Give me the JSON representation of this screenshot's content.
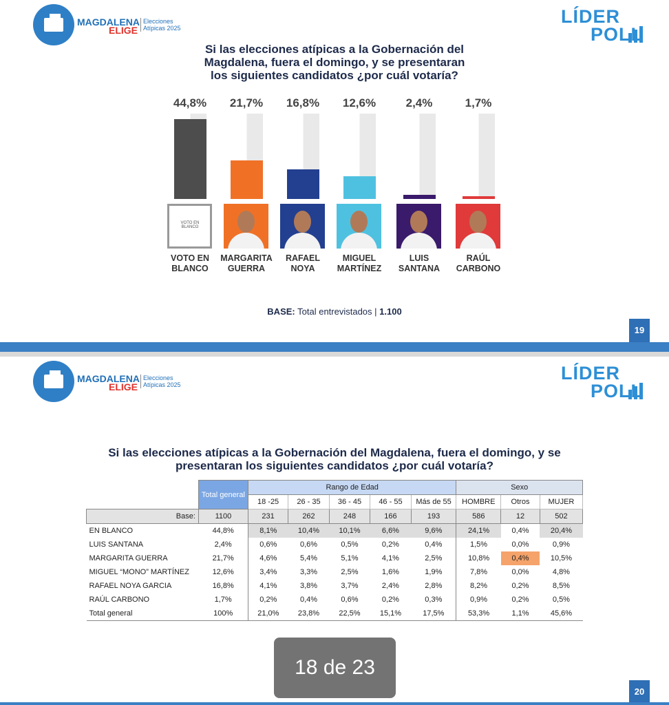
{
  "brand": {
    "name_top": "MAGDALENA",
    "name_bottom": "ELIGE",
    "tag_top": "Elecciones",
    "tag_bottom": "Atípicas 2025",
    "poll_top": "LÍDER",
    "poll_bottom": "POLL"
  },
  "chart_data": {
    "type": "bar",
    "title": "Si las elecciones atípicas a la Gobernación del Magdalena, fuera el domingo, y se presentaran los siguientes candidatos ¿por cuál votaría?",
    "categories": [
      "VOTO EN BLANCO",
      "MARGARITA GUERRA",
      "RAFAEL NOYA",
      "MIGUEL MARTÍNEZ",
      "LUIS SANTANA",
      "RAÚL CARBONO"
    ],
    "values": [
      44.8,
      21.7,
      16.8,
      12.6,
      2.4,
      1.7
    ],
    "value_labels": [
      "44,8%",
      "21,7%",
      "16,8%",
      "12,6%",
      "2,4%",
      "1,7%"
    ],
    "colors": [
      "#4d4d4d",
      "#f07126",
      "#233f8f",
      "#4fc1e0",
      "#3a1a6b",
      "#e03a3a"
    ]
  },
  "slide1": {
    "base_label": "BASE:",
    "base_text": "Total entrevistados",
    "base_value": "1.100",
    "page": "19"
  },
  "slide2": {
    "title": "Si las elecciones atípicas a la Gobernación del Magdalena, fuera el domingo, y se presentaran los siguientes candidatos ¿por cuál votaría?",
    "page": "20",
    "table": {
      "total_header": "Total general",
      "age_group": "Rango de Edad",
      "sex_group": "Sexo",
      "columns": [
        "18 -25",
        "26 - 35",
        "36 - 45",
        "46 - 55",
        "Más de 55",
        "HOMBRE",
        "Otros",
        "MUJER"
      ],
      "base": [
        "Base:",
        "1100",
        "231",
        "262",
        "248",
        "166",
        "193",
        "586",
        "12",
        "502"
      ],
      "rows": [
        [
          "EN BLANCO",
          "44,8%",
          "8,1%",
          "10,4%",
          "10,1%",
          "6,6%",
          "9,6%",
          "24,1%",
          "0,4%",
          "20,4%"
        ],
        [
          "LUIS SANTANA",
          "2,4%",
          "0,6%",
          "0,6%",
          "0,5%",
          "0,2%",
          "0,4%",
          "1,5%",
          "0,0%",
          "0,9%"
        ],
        [
          "MARGARITA GUERRA",
          "21,7%",
          "4,6%",
          "5,4%",
          "5,1%",
          "4,1%",
          "2,5%",
          "10,8%",
          "0,4%",
          "10,5%"
        ],
        [
          "MIGUEL “MONO” MARTÍNEZ",
          "12,6%",
          "3,4%",
          "3,3%",
          "2,5%",
          "1,6%",
          "1,9%",
          "7,8%",
          "0,0%",
          "4,8%"
        ],
        [
          "RAFAEL NOYA GARCIA",
          "16,8%",
          "4,1%",
          "3,8%",
          "3,7%",
          "2,4%",
          "2,8%",
          "8,2%",
          "0,2%",
          "8,5%"
        ],
        [
          "RAÚL CARBONO",
          "1,7%",
          "0,2%",
          "0,4%",
          "0,6%",
          "0,2%",
          "0,3%",
          "0,9%",
          "0,2%",
          "0,5%"
        ],
        [
          "Total general",
          "100%",
          "21,0%",
          "23,8%",
          "22,5%",
          "15,1%",
          "17,5%",
          "53,3%",
          "1,1%",
          "45,6%"
        ]
      ]
    }
  },
  "viewer": {
    "counter": "18 de 23"
  }
}
